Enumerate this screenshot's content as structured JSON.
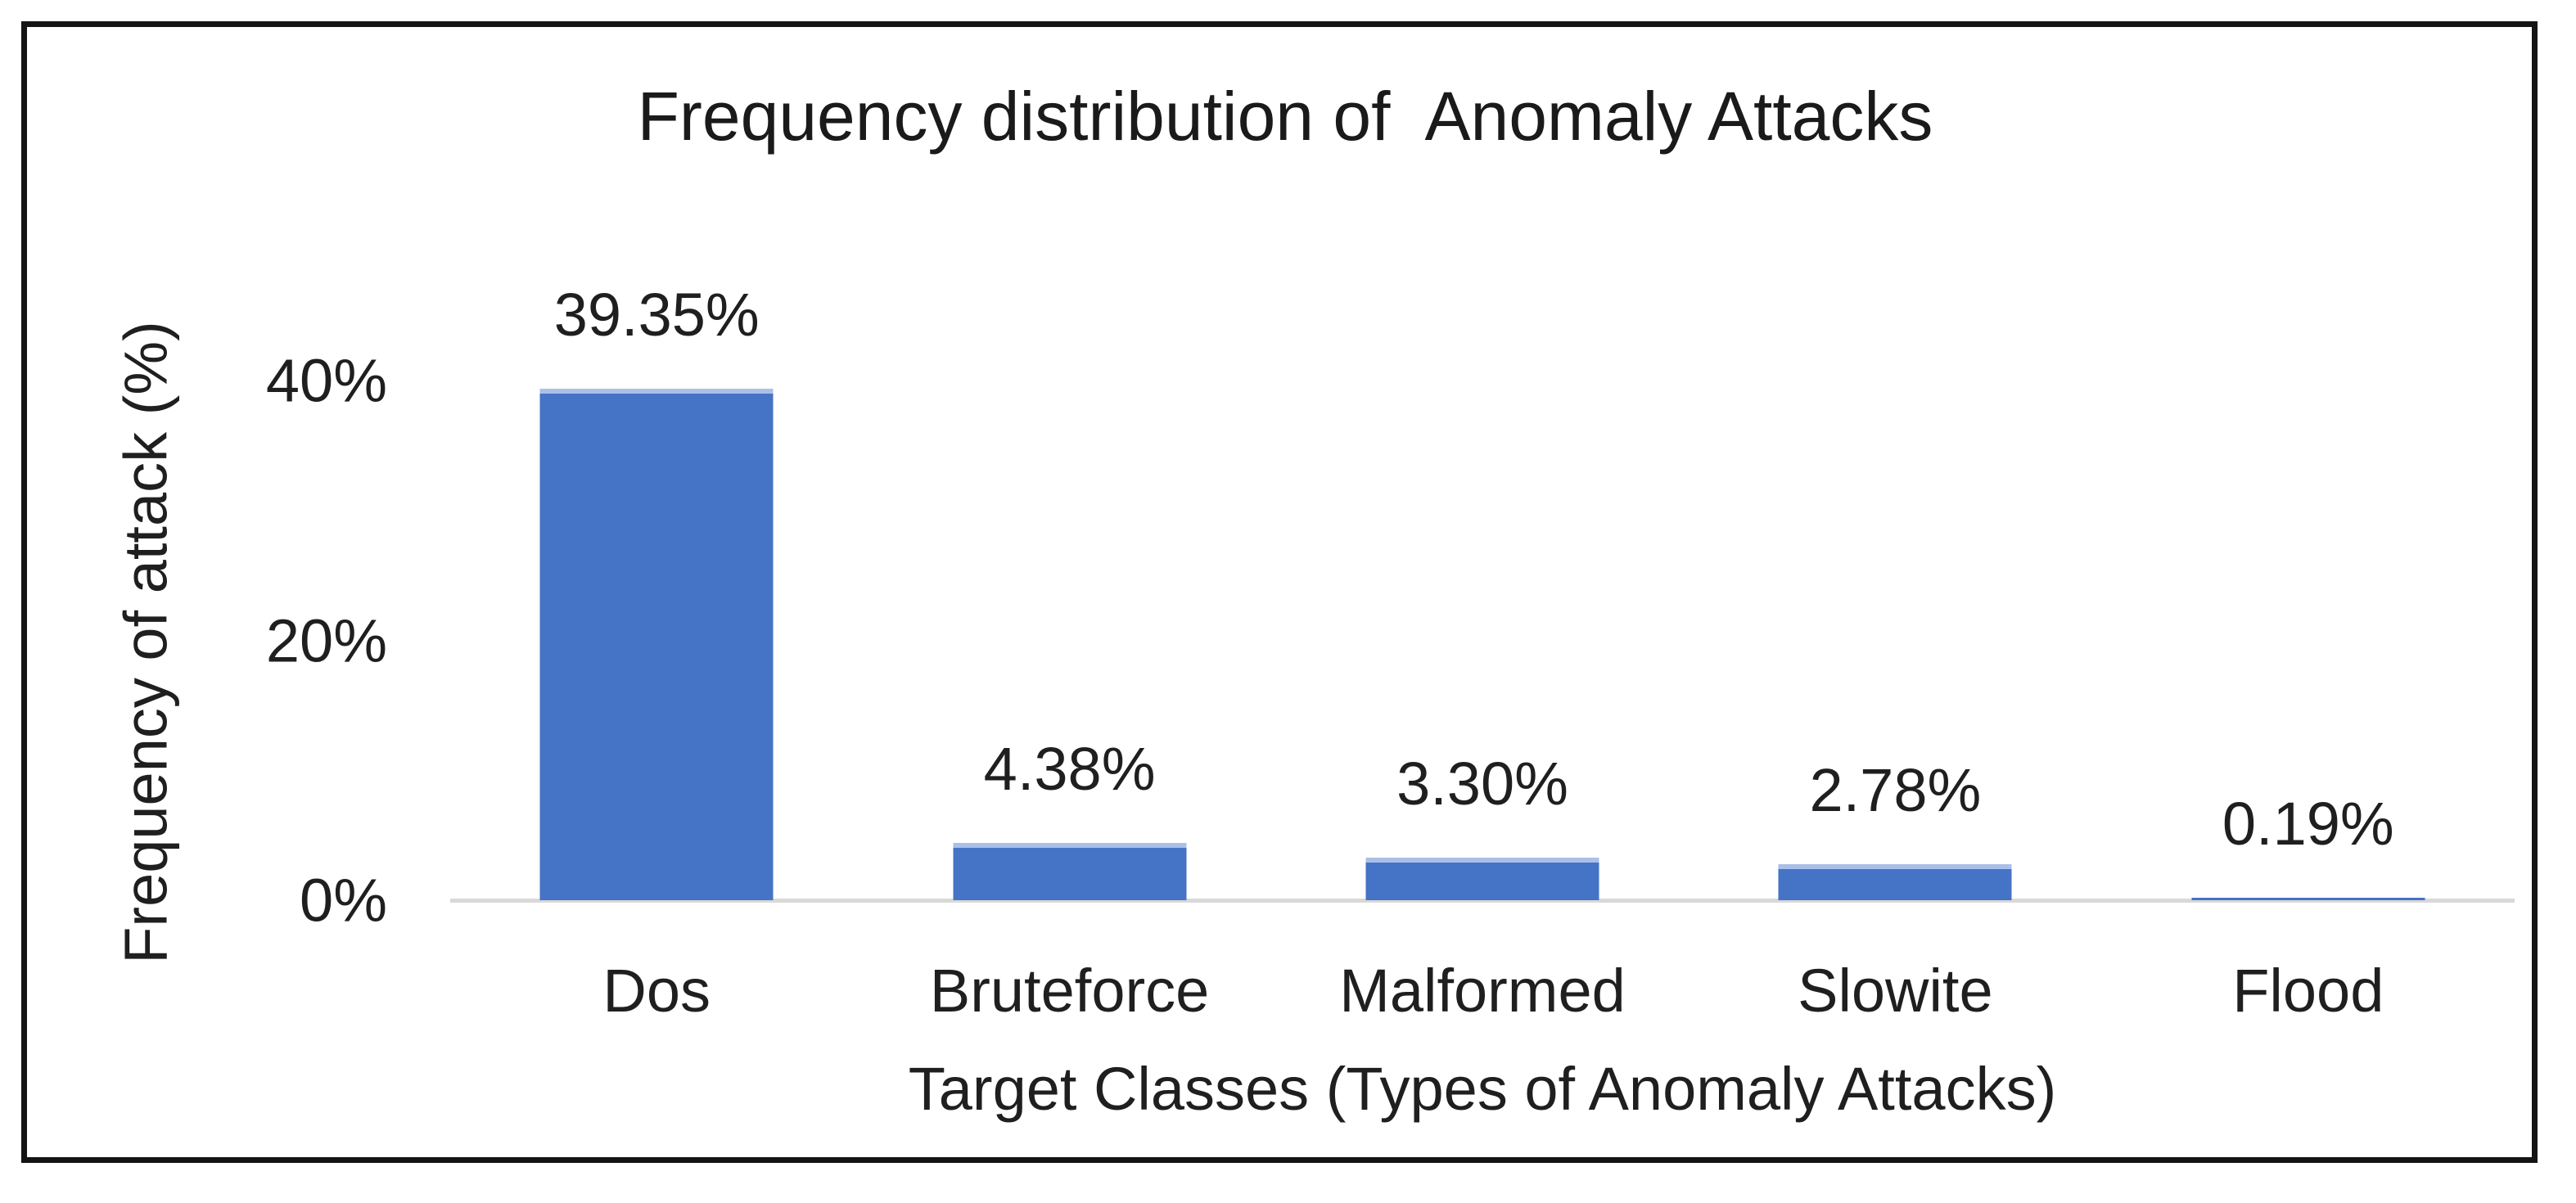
{
  "chart_data": {
    "type": "bar",
    "title": "Frequency distribution of  Anomaly Attacks",
    "categories": [
      "Dos",
      "Bruteforce",
      "Malformed",
      "Slowite",
      "Flood"
    ],
    "values": [
      39.35,
      4.38,
      3.3,
      2.78,
      0.19
    ],
    "value_labels": [
      "39.35%",
      "4.38%",
      "3.30%",
      "2.78%",
      "0.19%"
    ],
    "xlabel": "Target Classes (Types of Anomaly Attacks)",
    "ylabel": "Frequency of attack (%)",
    "yticks": [
      {
        "label": "40%",
        "value": 40
      },
      {
        "label": "20%",
        "value": 20
      },
      {
        "label": "0%",
        "value": 0
      }
    ],
    "ylim": [
      0,
      44
    ],
    "grid": false,
    "legend_position": "none",
    "colors": {
      "bar_fill": "#4573c6",
      "bar_top_edge": "#aac0e8",
      "axis_line": "#d9d9d9",
      "text": "#1f1f1f",
      "frame_border": "#141414",
      "background": "#ffffff"
    }
  }
}
